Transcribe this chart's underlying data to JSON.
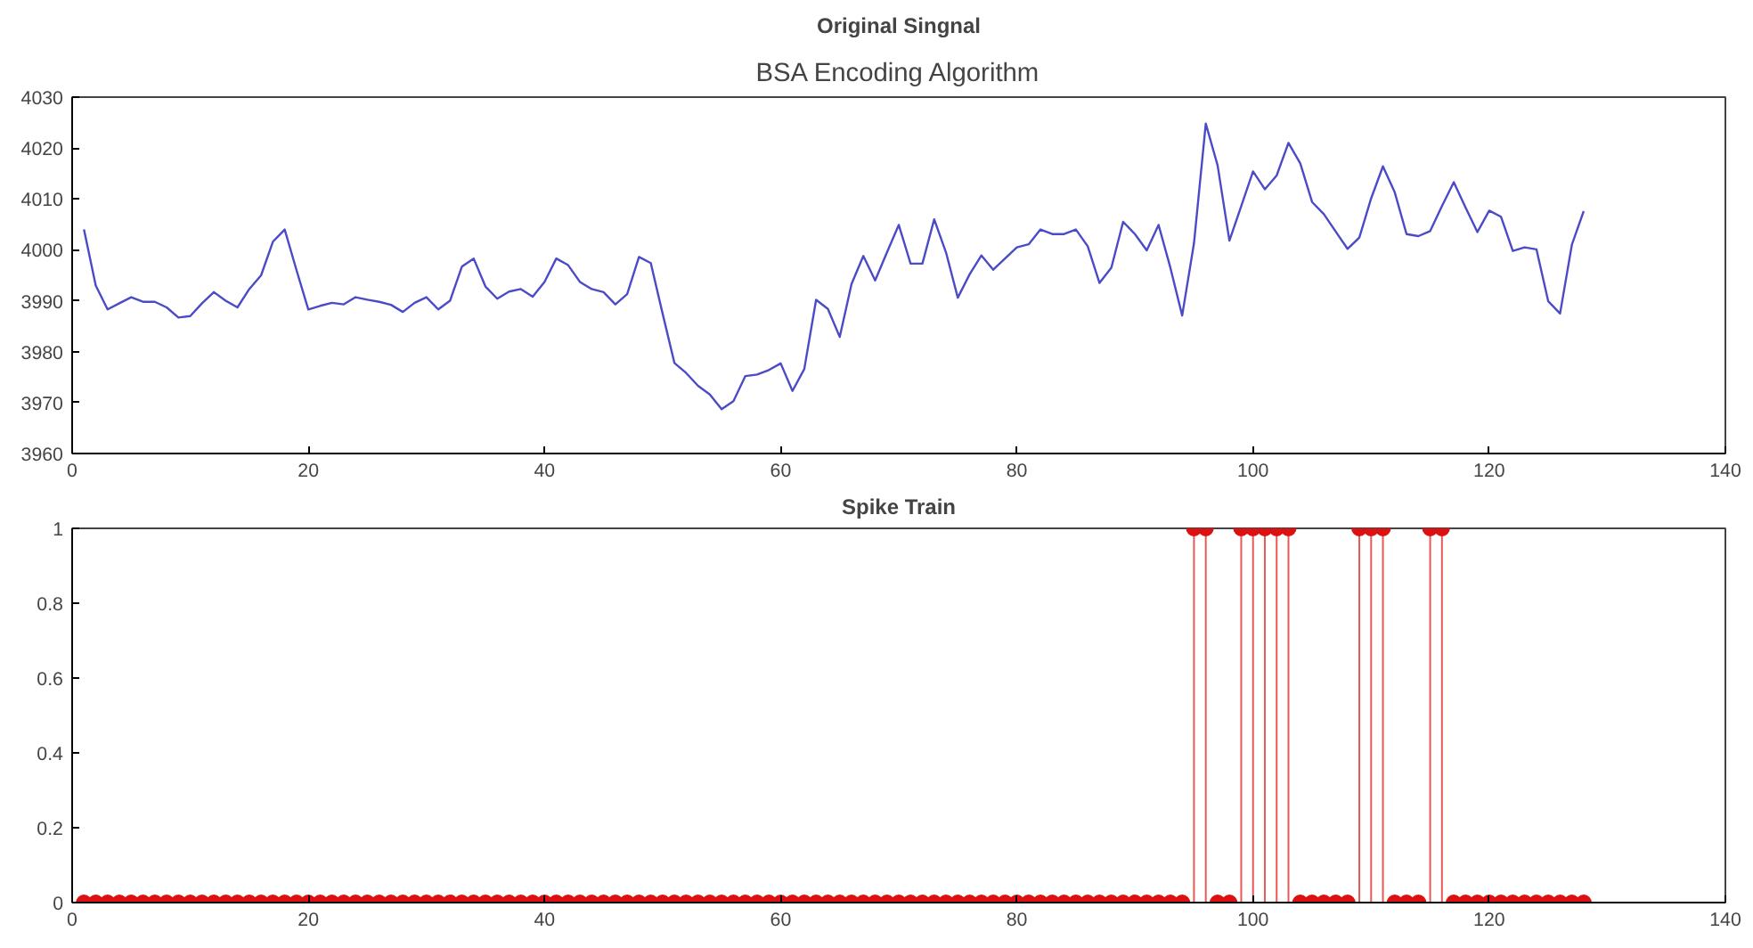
{
  "chart_data": [
    {
      "type": "line",
      "title": "Original Singnal",
      "annotations": [
        "BSA Encoding Algorithm"
      ],
      "color": "#4b4bc8",
      "marker": "none",
      "line_style": "solid",
      "grid": false,
      "x": [
        1,
        2,
        3,
        4,
        5,
        6,
        7,
        8,
        9,
        10,
        11,
        12,
        13,
        14,
        15,
        16,
        17,
        18,
        19,
        20,
        21,
        22,
        23,
        24,
        25,
        26,
        27,
        28,
        29,
        30,
        31,
        32,
        33,
        34,
        35,
        36,
        37,
        38,
        39,
        40,
        41,
        42,
        43,
        44,
        45,
        46,
        47,
        48,
        49,
        50,
        51,
        52,
        53,
        54,
        55,
        56,
        57,
        58,
        59,
        60,
        61,
        62,
        63,
        64,
        65,
        66,
        67,
        68,
        69,
        70,
        71,
        72,
        73,
        74,
        75,
        76,
        77,
        78,
        79,
        80,
        81,
        82,
        83,
        84,
        85,
        86,
        87,
        88,
        89,
        90,
        91,
        92,
        93,
        94,
        95,
        96,
        97,
        98,
        99,
        100,
        101,
        102,
        103,
        104,
        105,
        106,
        107,
        108,
        109,
        110,
        111,
        112,
        113,
        114,
        115,
        116,
        117,
        118,
        119,
        120,
        121,
        122,
        123,
        124,
        125,
        126,
        127,
        128
      ],
      "values": [
        4004,
        3993,
        3988.3,
        3989.5,
        3990.7,
        3989.8,
        3989.8,
        3988.7,
        3986.7,
        3987,
        3989.5,
        3991.7,
        3990,
        3988.7,
        3992.3,
        3995,
        4001.6,
        4004,
        3996,
        3988.3,
        3989,
        3989.6,
        3989.3,
        3990.7,
        3990.2,
        3989.8,
        3989.2,
        3987.8,
        3989.6,
        3990.7,
        3988.3,
        3990,
        3996.7,
        3998.3,
        3992.8,
        3990.4,
        3991.8,
        3992.3,
        3990.8,
        3993.7,
        3998.3,
        3997,
        3993.7,
        3992.3,
        3991.7,
        3989.3,
        3991.3,
        3998.6,
        3997.4,
        3987.5,
        3977.8,
        3975.8,
        3973.3,
        3971.6,
        3968.7,
        3970.3,
        3975.2,
        3975.5,
        3976.4,
        3977.7,
        3972.3,
        3976.6,
        3990.2,
        3988.4,
        3982.9,
        3993.3,
        3998.8,
        3994,
        3999.5,
        4004.9,
        3997.3,
        3997.3,
        4006,
        3999.5,
        3990.6,
        3995.2,
        3998.9,
        3996.1,
        3998.3,
        4000.5,
        4001.1,
        4004,
        4003.1,
        4003.1,
        4004,
        4000.7,
        3993.5,
        3996.5,
        4005.5,
        4003.1,
        3999.9,
        4004.9,
        3996.5,
        3987.1,
        4001.3,
        4024.8,
        4016.6,
        4001.8,
        4008.6,
        4015.4,
        4011.9,
        4014.6,
        4021,
        4017,
        4009.4,
        4007,
        4003.6,
        4000.2,
        4002.4,
        4010.1,
        4016.4,
        4011.3,
        4003.1,
        4002.7,
        4003.7,
        4008.6,
        4013.3,
        4008.3,
        4003.5,
        4007.7,
        4006.5,
        3999.8,
        4000.5,
        4000.1,
        3989.9,
        3987.5,
        4001,
        4007.6
      ],
      "xlim": [
        0,
        140
      ],
      "xticks": [
        0,
        20,
        40,
        60,
        80,
        100,
        120,
        140
      ],
      "ylim": [
        3960,
        4030
      ],
      "yticks": [
        3960,
        3970,
        3980,
        3990,
        4000,
        4010,
        4020,
        4030
      ]
    },
    {
      "type": "lollipop",
      "title": "Spike Train",
      "color": "#dd1111",
      "marker": "circle",
      "grid": false,
      "x": [
        1,
        2,
        3,
        4,
        5,
        6,
        7,
        8,
        9,
        10,
        11,
        12,
        13,
        14,
        15,
        16,
        17,
        18,
        19,
        20,
        21,
        22,
        23,
        24,
        25,
        26,
        27,
        28,
        29,
        30,
        31,
        32,
        33,
        34,
        35,
        36,
        37,
        38,
        39,
        40,
        41,
        42,
        43,
        44,
        45,
        46,
        47,
        48,
        49,
        50,
        51,
        52,
        53,
        54,
        55,
        56,
        57,
        58,
        59,
        60,
        61,
        62,
        63,
        64,
        65,
        66,
        67,
        68,
        69,
        70,
        71,
        72,
        73,
        74,
        75,
        76,
        77,
        78,
        79,
        80,
        81,
        82,
        83,
        84,
        85,
        86,
        87,
        88,
        89,
        90,
        91,
        92,
        93,
        94,
        95,
        96,
        97,
        98,
        99,
        100,
        101,
        102,
        103,
        104,
        105,
        106,
        107,
        108,
        109,
        110,
        111,
        112,
        113,
        114,
        115,
        116,
        117,
        118,
        119,
        120,
        121,
        122,
        123,
        124,
        125,
        126,
        127,
        128
      ],
      "values": [
        0,
        0,
        0,
        0,
        0,
        0,
        0,
        0,
        0,
        0,
        0,
        0,
        0,
        0,
        0,
        0,
        0,
        0,
        0,
        0,
        0,
        0,
        0,
        0,
        0,
        0,
        0,
        0,
        0,
        0,
        0,
        0,
        0,
        0,
        0,
        0,
        0,
        0,
        0,
        0,
        0,
        0,
        0,
        0,
        0,
        0,
        0,
        0,
        0,
        0,
        0,
        0,
        0,
        0,
        0,
        0,
        0,
        0,
        0,
        0,
        0,
        0,
        0,
        0,
        0,
        0,
        0,
        0,
        0,
        0,
        0,
        0,
        0,
        0,
        0,
        0,
        0,
        0,
        0,
        0,
        0,
        0,
        0,
        0,
        0,
        0,
        0,
        0,
        0,
        0,
        0,
        0,
        0,
        0,
        1,
        1,
        0,
        0,
        1,
        1,
        1,
        1,
        1,
        0,
        0,
        0,
        0,
        0,
        1,
        1,
        1,
        0,
        0,
        0,
        1,
        1,
        0,
        0,
        0,
        0,
        0,
        0,
        0,
        0,
        0,
        0,
        0,
        0
      ],
      "xlim": [
        0,
        140
      ],
      "xticks": [
        0,
        20,
        40,
        60,
        80,
        100,
        120,
        140
      ],
      "ylim": [
        0,
        1
      ],
      "yticks": [
        0,
        0.2,
        0.4,
        0.6,
        0.8,
        1
      ]
    }
  ]
}
